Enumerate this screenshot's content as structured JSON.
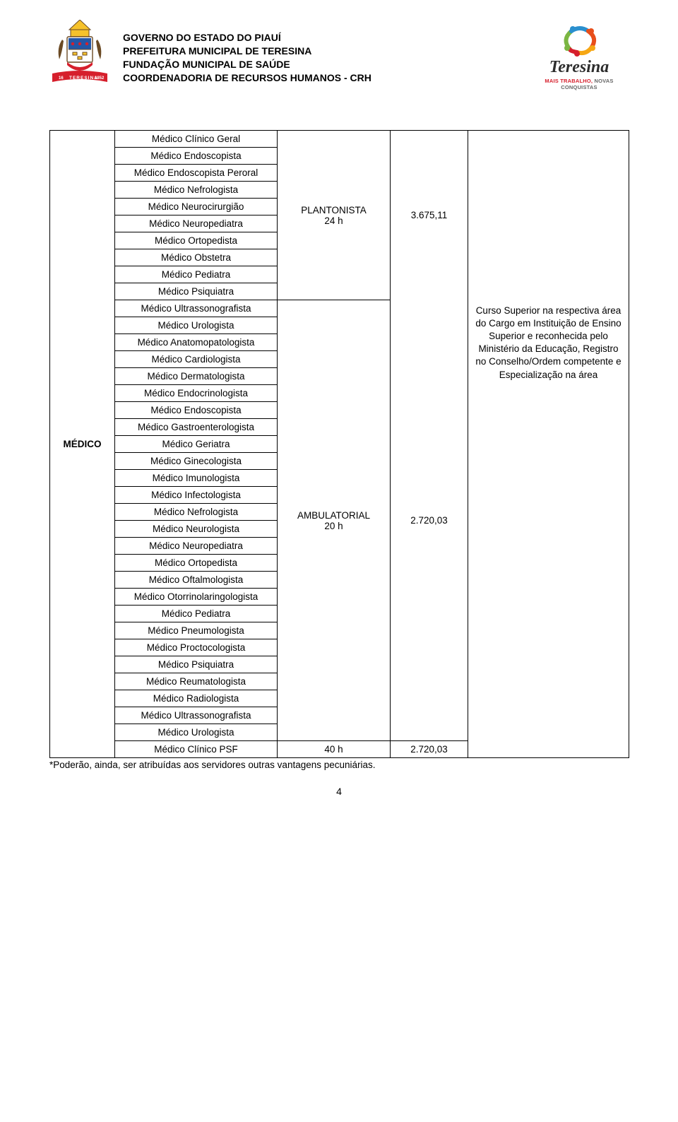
{
  "header": {
    "l1": "GOVERNO DO ESTADO DO PIAUÍ",
    "l2": "PREFEITURA MUNICIPAL DE TERESINA",
    "l3": "FUNDAÇÃO MUNICIPAL DE SAÚDE",
    "l4": "COORDENADORIA DE RECURSOS HUMANOS - CRH"
  },
  "logo": {
    "brand": "Teresina",
    "tagline_a": "MAIS TRABALHO, ",
    "tagline_b": "NOVAS CONQUISTAS",
    "swirl_colors": [
      "#7bb642",
      "#2a8fce",
      "#e84e1b",
      "#f6a714",
      "#d61f2c"
    ]
  },
  "crest": {
    "banner_color": "#d61f2c",
    "blue": "#2356a6",
    "gold": "#f6c22b",
    "brown": "#6b4a24",
    "year_left": "16",
    "year_right": "1852",
    "name": "TERESINA"
  },
  "category": "MÉDICO",
  "regime1": {
    "label": "PLANTONISTA",
    "hours": "24 h",
    "value": "3.675,11"
  },
  "regime2": {
    "label": "AMBULATORIAL",
    "hours": "20 h",
    "value": "2.720,03"
  },
  "psf": {
    "label": "Médico Clínico PSF",
    "hours": "40 h",
    "value": "2.720,03"
  },
  "requirements": "Curso Superior na respectiva área do Cargo em Instituição de Ensino Superior e reconhecida pelo Ministério da Educação, Registro no Conselho/Ordem competente e Especialização na área",
  "items_top": [
    "Médico Clínico Geral",
    "Médico Endoscopista",
    "Médico Endoscopista Peroral",
    "Médico Nefrologista",
    "Médico Neurocirurgião",
    "Médico Neuropediatra",
    "Médico Ortopedista",
    "Médico Obstetra",
    "Médico Pediatra",
    "Médico Psiquiatra"
  ],
  "items_bottom": [
    "Médico Ultrassonografista",
    "Médico Urologista",
    "Médico Anatomopatologista",
    "Médico Cardiologista",
    "Médico Dermatologista",
    "Médico Endocrinologista",
    "Médico Endoscopista",
    "Médico Gastroenterologista",
    "Médico Geriatra",
    "Médico Ginecologista",
    "Médico Imunologista",
    "Médico Infectologista",
    "Médico Nefrologista",
    "Médico Neurologista",
    "Médico Neuropediatra",
    "Médico Ortopedista",
    "Médico Oftalmologista",
    "Médico Otorrinolaringologista",
    "Médico Pediatra",
    "Médico Pneumologista",
    "Médico Proctocologista",
    "Médico Psiquiatra",
    "Médico Reumatologista",
    "Médico Radiologista",
    "Médico Ultrassonografista",
    "Médico Urologista"
  ],
  "footnote": "*Poderão, ainda, ser atribuídas aos servidores outras vantagens pecuniárias.",
  "page_number": "4"
}
